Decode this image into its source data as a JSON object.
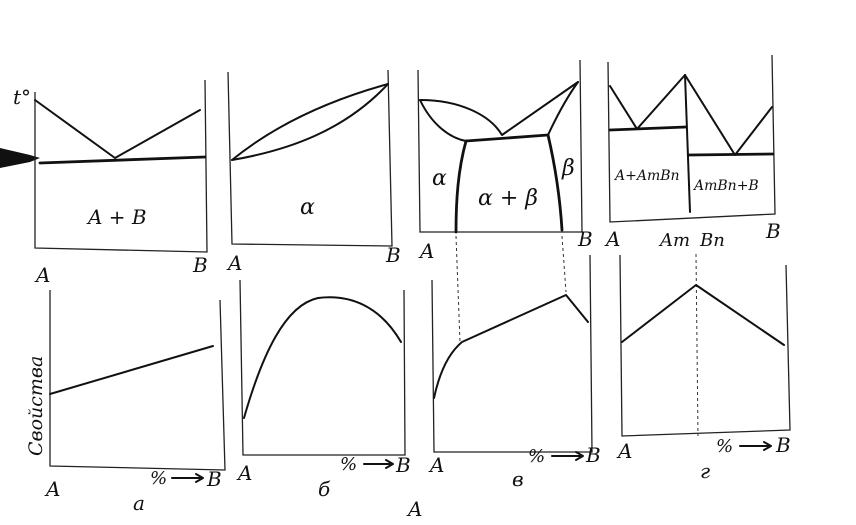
{
  "axis_labels": {
    "temperature": "t°",
    "property": "Свойства",
    "percent": "%"
  },
  "panels": [
    {
      "id": "a",
      "caption": "а",
      "left_end": "A",
      "right_end": "B",
      "region_labels": [
        "A + B"
      ]
    },
    {
      "id": "b",
      "caption": "б",
      "left_end": "A",
      "right_end": "B",
      "region_labels": [
        "α"
      ]
    },
    {
      "id": "c",
      "caption": "в",
      "left_end": "A",
      "right_end": "B",
      "region_labels": [
        "α",
        "α + β",
        "β"
      ]
    },
    {
      "id": "d",
      "caption": "г",
      "left_end": "A",
      "right_end": "B",
      "compound_left": "Am",
      "compound_right": "Bn",
      "region_labels": [
        "A+AmBn",
        "AmBn+B"
      ]
    }
  ],
  "stray_letter": "A"
}
